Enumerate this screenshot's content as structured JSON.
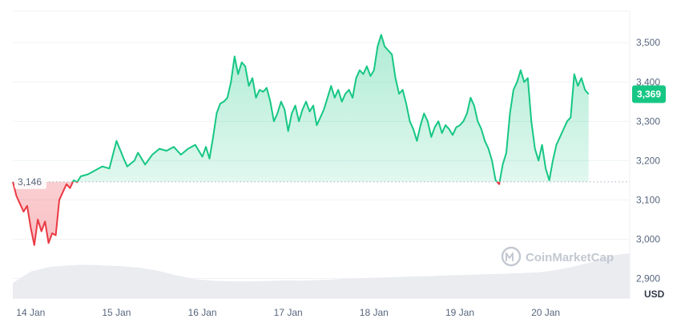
{
  "chart_data": {
    "type": "area",
    "title": "",
    "xlabel": "",
    "ylabel": "",
    "unit": "USD",
    "ylim": [
      2850,
      3580
    ],
    "y_ticks": [
      2900,
      3000,
      3100,
      3200,
      3300,
      3400,
      3500
    ],
    "y_tick_labels": [
      "2,900",
      "3,000",
      "3,100",
      "3,200",
      "3,300",
      "3,400",
      "3,500"
    ],
    "x_ticks": [
      "14 Jan",
      "15 Jan",
      "16 Jan",
      "17 Jan",
      "18 Jan",
      "19 Jan",
      "20 Jan"
    ],
    "x_start": "2024-01-13T19:00",
    "x_end": "2024-01-20T23:30",
    "reference_price": 3146,
    "reference_label": "3,146",
    "current_price": 3369,
    "current_label": "3,369",
    "colors": {
      "up": "#16c784",
      "down": "#ea3943",
      "badge": "#16c784"
    },
    "grid": true,
    "watermark": "CoinMarketCap",
    "series": [
      {
        "points": [
          [
            "2024-01-13T19:00",
            3146
          ],
          [
            "2024-01-13T20:00",
            3110
          ],
          [
            "2024-01-13T22:00",
            3070
          ],
          [
            "2024-01-13T23:00",
            3085
          ],
          [
            "2024-01-14T00:00",
            3030
          ],
          [
            "2024-01-14T01:00",
            2985
          ],
          [
            "2024-01-14T02:00",
            3050
          ],
          [
            "2024-01-14T03:00",
            3020
          ],
          [
            "2024-01-14T04:00",
            3045
          ],
          [
            "2024-01-14T05:00",
            2990
          ],
          [
            "2024-01-14T06:00",
            3015
          ],
          [
            "2024-01-14T07:00",
            3010
          ],
          [
            "2024-01-14T08:00",
            3100
          ],
          [
            "2024-01-14T09:00",
            3120
          ],
          [
            "2024-01-14T10:00",
            3140
          ],
          [
            "2024-01-14T11:00",
            3130
          ],
          [
            "2024-01-14T12:00",
            3150
          ],
          [
            "2024-01-14T13:00",
            3145
          ],
          [
            "2024-01-14T14:00",
            3160
          ],
          [
            "2024-01-14T16:00",
            3165
          ],
          [
            "2024-01-14T18:00",
            3175
          ],
          [
            "2024-01-14T20:00",
            3185
          ],
          [
            "2024-01-14T22:00",
            3180
          ],
          [
            "2024-01-15T00:00",
            3250
          ],
          [
            "2024-01-15T02:00",
            3205
          ],
          [
            "2024-01-15T03:00",
            3185
          ],
          [
            "2024-01-15T05:00",
            3200
          ],
          [
            "2024-01-15T06:00",
            3220
          ],
          [
            "2024-01-15T08:00",
            3190
          ],
          [
            "2024-01-15T10:00",
            3215
          ],
          [
            "2024-01-15T12:00",
            3230
          ],
          [
            "2024-01-15T14:00",
            3225
          ],
          [
            "2024-01-15T16:00",
            3235
          ],
          [
            "2024-01-15T18:00",
            3215
          ],
          [
            "2024-01-15T20:00",
            3230
          ],
          [
            "2024-01-15T22:00",
            3240
          ],
          [
            "2024-01-16T00:00",
            3210
          ],
          [
            "2024-01-16T01:00",
            3235
          ],
          [
            "2024-01-16T02:00",
            3205
          ],
          [
            "2024-01-16T03:00",
            3260
          ],
          [
            "2024-01-16T04:00",
            3320
          ],
          [
            "2024-01-16T05:00",
            3345
          ],
          [
            "2024-01-16T06:00",
            3350
          ],
          [
            "2024-01-16T07:00",
            3360
          ],
          [
            "2024-01-16T08:00",
            3400
          ],
          [
            "2024-01-16T09:00",
            3465
          ],
          [
            "2024-01-16T10:00",
            3420
          ],
          [
            "2024-01-16T11:00",
            3450
          ],
          [
            "2024-01-16T12:00",
            3440
          ],
          [
            "2024-01-16T13:00",
            3390
          ],
          [
            "2024-01-16T14:00",
            3410
          ],
          [
            "2024-01-16T15:00",
            3360
          ],
          [
            "2024-01-16T16:00",
            3380
          ],
          [
            "2024-01-16T17:00",
            3375
          ],
          [
            "2024-01-16T18:00",
            3385
          ],
          [
            "2024-01-16T19:00",
            3350
          ],
          [
            "2024-01-16T20:00",
            3300
          ],
          [
            "2024-01-16T21:00",
            3320
          ],
          [
            "2024-01-16T22:00",
            3350
          ],
          [
            "2024-01-16T23:00",
            3330
          ],
          [
            "2024-01-17T00:00",
            3275
          ],
          [
            "2024-01-17T01:00",
            3320
          ],
          [
            "2024-01-17T02:00",
            3340
          ],
          [
            "2024-01-17T03:00",
            3300
          ],
          [
            "2024-01-17T04:00",
            3330
          ],
          [
            "2024-01-17T05:00",
            3350
          ],
          [
            "2024-01-17T06:00",
            3325
          ],
          [
            "2024-01-17T07:00",
            3340
          ],
          [
            "2024-01-17T08:00",
            3290
          ],
          [
            "2024-01-17T09:00",
            3310
          ],
          [
            "2024-01-17T10:00",
            3330
          ],
          [
            "2024-01-17T11:00",
            3360
          ],
          [
            "2024-01-17T12:00",
            3390
          ],
          [
            "2024-01-17T13:00",
            3360
          ],
          [
            "2024-01-17T14:00",
            3380
          ],
          [
            "2024-01-17T15:00",
            3350
          ],
          [
            "2024-01-17T16:00",
            3370
          ],
          [
            "2024-01-17T17:00",
            3380
          ],
          [
            "2024-01-17T18:00",
            3360
          ],
          [
            "2024-01-17T19:00",
            3410
          ],
          [
            "2024-01-17T20:00",
            3430
          ],
          [
            "2024-01-17T21:00",
            3420
          ],
          [
            "2024-01-17T22:00",
            3440
          ],
          [
            "2024-01-17T23:00",
            3415
          ],
          [
            "2024-01-18T00:00",
            3430
          ],
          [
            "2024-01-18T01:00",
            3490
          ],
          [
            "2024-01-18T02:00",
            3520
          ],
          [
            "2024-01-18T03:00",
            3490
          ],
          [
            "2024-01-18T04:00",
            3480
          ],
          [
            "2024-01-18T05:00",
            3470
          ],
          [
            "2024-01-18T06:00",
            3410
          ],
          [
            "2024-01-18T07:00",
            3370
          ],
          [
            "2024-01-18T08:00",
            3380
          ],
          [
            "2024-01-18T09:00",
            3345
          ],
          [
            "2024-01-18T10:00",
            3300
          ],
          [
            "2024-01-18T11:00",
            3280
          ],
          [
            "2024-01-18T12:00",
            3250
          ],
          [
            "2024-01-18T13:00",
            3290
          ],
          [
            "2024-01-18T14:00",
            3320
          ],
          [
            "2024-01-18T15:00",
            3300
          ],
          [
            "2024-01-18T16:00",
            3260
          ],
          [
            "2024-01-18T17:00",
            3285
          ],
          [
            "2024-01-18T18:00",
            3300
          ],
          [
            "2024-01-18T19:00",
            3270
          ],
          [
            "2024-01-18T20:00",
            3290
          ],
          [
            "2024-01-18T21:00",
            3280
          ],
          [
            "2024-01-18T22:00",
            3265
          ],
          [
            "2024-01-18T23:00",
            3285
          ],
          [
            "2024-01-19T00:00",
            3290
          ],
          [
            "2024-01-19T01:00",
            3300
          ],
          [
            "2024-01-19T02:00",
            3320
          ],
          [
            "2024-01-19T03:00",
            3360
          ],
          [
            "2024-01-19T04:00",
            3340
          ],
          [
            "2024-01-19T05:00",
            3300
          ],
          [
            "2024-01-19T06:00",
            3280
          ],
          [
            "2024-01-19T07:00",
            3250
          ],
          [
            "2024-01-19T08:00",
            3230
          ],
          [
            "2024-01-19T09:00",
            3200
          ],
          [
            "2024-01-19T10:00",
            3150
          ],
          [
            "2024-01-19T11:00",
            3140
          ],
          [
            "2024-01-19T12:00",
            3190
          ],
          [
            "2024-01-19T13:00",
            3220
          ],
          [
            "2024-01-19T14:00",
            3320
          ],
          [
            "2024-01-19T15:00",
            3380
          ],
          [
            "2024-01-19T16:00",
            3400
          ],
          [
            "2024-01-19T17:00",
            3430
          ],
          [
            "2024-01-19T18:00",
            3400
          ],
          [
            "2024-01-19T19:00",
            3410
          ],
          [
            "2024-01-19T20:00",
            3300
          ],
          [
            "2024-01-19T21:00",
            3230
          ],
          [
            "2024-01-19T22:00",
            3200
          ],
          [
            "2024-01-19T23:00",
            3240
          ],
          [
            "2024-01-20T00:00",
            3180
          ],
          [
            "2024-01-20T01:00",
            3150
          ],
          [
            "2024-01-20T02:00",
            3200
          ],
          [
            "2024-01-20T03:00",
            3240
          ],
          [
            "2024-01-20T04:00",
            3260
          ],
          [
            "2024-01-20T05:00",
            3280
          ],
          [
            "2024-01-20T06:00",
            3300
          ],
          [
            "2024-01-20T07:00",
            3310
          ],
          [
            "2024-01-20T08:00",
            3420
          ],
          [
            "2024-01-20T09:00",
            3390
          ],
          [
            "2024-01-20T10:00",
            3410
          ],
          [
            "2024-01-20T11:00",
            3380
          ],
          [
            "2024-01-20T12:00",
            3369
          ]
        ]
      }
    ],
    "volume": [
      40,
      70,
      82,
      86,
      88,
      86,
      84,
      80,
      72,
      60,
      50,
      46,
      44,
      44,
      45,
      47,
      46,
      48,
      50,
      52,
      54,
      55,
      57,
      58,
      60,
      61,
      63,
      64,
      66,
      68,
      74,
      84,
      96,
      112,
      118
    ]
  }
}
